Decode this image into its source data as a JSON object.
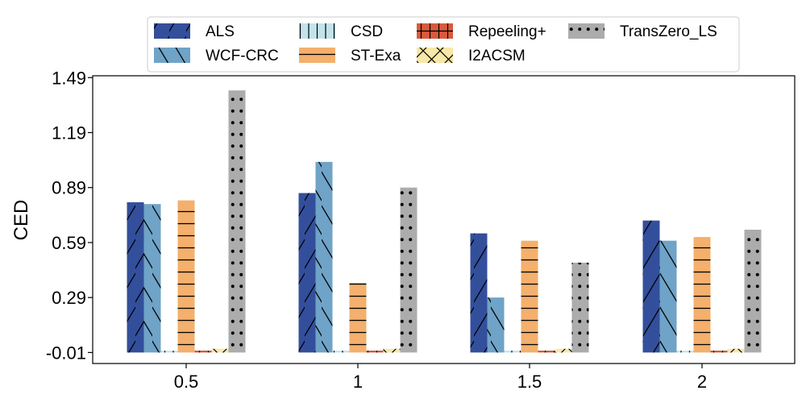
{
  "chart_data": {
    "type": "bar",
    "title": "",
    "xlabel": "",
    "ylabel": "CED",
    "categories": [
      "0.5",
      "1",
      "1.5",
      "2"
    ],
    "yticks": [
      "-0.01",
      "0.29",
      "0.59",
      "0.89",
      "1.19",
      "1.49"
    ],
    "ytick_values": [
      -0.01,
      0.29,
      0.59,
      0.89,
      1.19,
      1.49
    ],
    "ylim": [
      -0.07,
      1.5
    ],
    "grid": false,
    "legend_position": "top",
    "series": [
      {
        "name": "ALS",
        "color": "#334f9c",
        "hatch": "forward-slash",
        "values": [
          0.81,
          0.86,
          0.64,
          0.71
        ]
      },
      {
        "name": "WCF-CRC",
        "color": "#6fa3c7",
        "hatch": "back-slash",
        "values": [
          0.8,
          1.03,
          0.29,
          0.6
        ]
      },
      {
        "name": "CSD",
        "color": "#c3e3ea",
        "hatch": "vertical",
        "values": [
          0.0,
          0.0,
          0.0,
          0.0
        ]
      },
      {
        "name": "ST-Exa",
        "color": "#f4b06c",
        "hatch": "horizontal",
        "values": [
          0.82,
          0.37,
          0.6,
          0.62
        ]
      },
      {
        "name": "Repeeling+",
        "color": "#d95a3b",
        "hatch": "plus",
        "values": [
          0.0,
          0.0,
          0.0,
          0.0
        ]
      },
      {
        "name": "I2ACSM",
        "color": "#f7e7a8",
        "hatch": "cross",
        "values": [
          0.01,
          0.01,
          0.01,
          0.01
        ]
      },
      {
        "name": "TransZero_LS",
        "color": "#acacac",
        "hatch": "dots",
        "values": [
          1.42,
          0.89,
          0.48,
          0.66
        ]
      }
    ]
  }
}
